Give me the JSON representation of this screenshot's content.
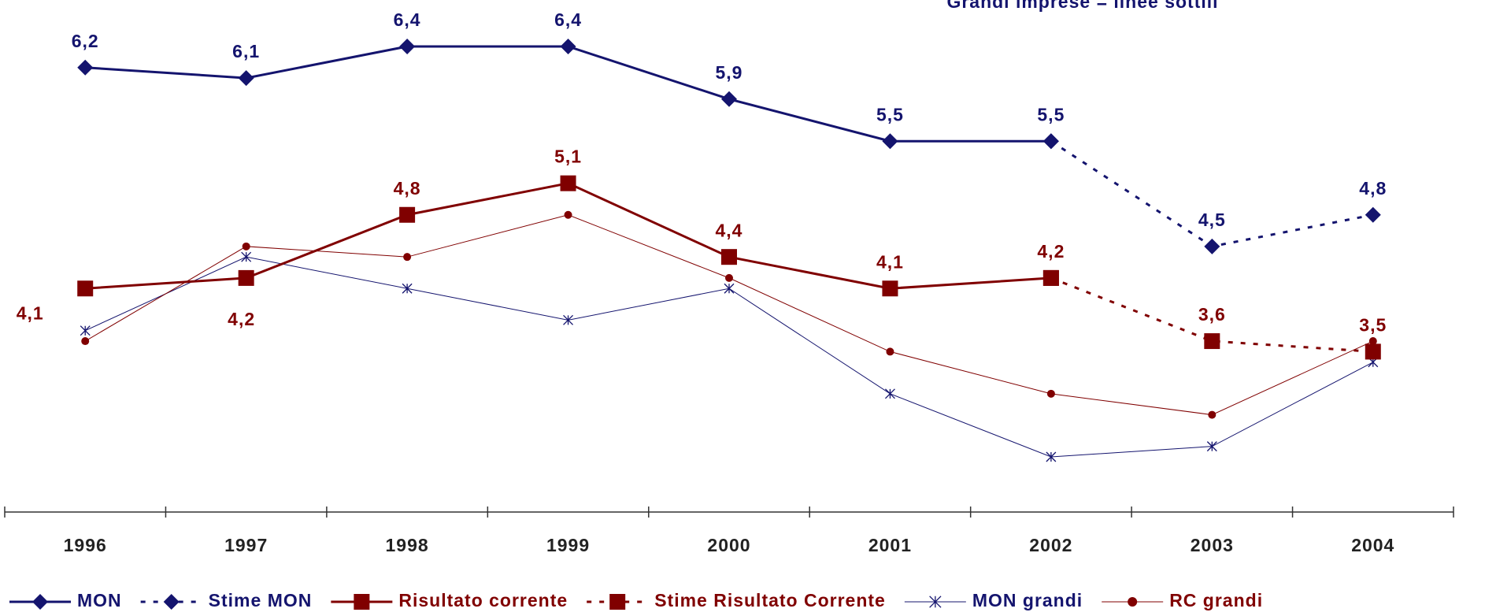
{
  "chart_data": {
    "type": "line",
    "annotation": "Grandi imprese = linee sottili",
    "categories": [
      "1996",
      "1997",
      "1998",
      "1999",
      "2000",
      "2001",
      "2002",
      "2003",
      "2004"
    ],
    "legend": "bottom",
    "series": [
      {
        "name": "MON",
        "color": "#14146e",
        "marker": "diamond",
        "dash": "solid",
        "width": 3,
        "values": [
          6.2,
          6.1,
          6.4,
          6.4,
          5.9,
          5.5,
          5.5,
          null,
          null
        ],
        "value_labels": [
          "6,2",
          "6,1",
          "6,4",
          "6,4",
          "5,9",
          "5,5",
          "5,5",
          null,
          null
        ]
      },
      {
        "name": "Stime MON",
        "color": "#14146e",
        "marker": "diamond",
        "dash": "dotted",
        "width": 3,
        "values": [
          null,
          null,
          null,
          null,
          null,
          null,
          5.5,
          4.5,
          4.8
        ],
        "value_labels": [
          null,
          null,
          null,
          null,
          null,
          null,
          null,
          "4,5",
          "4,8"
        ]
      },
      {
        "name": "Risultato corrente",
        "color": "#800000",
        "marker": "square",
        "dash": "solid",
        "width": 3,
        "values": [
          4.1,
          4.2,
          4.8,
          5.1,
          4.4,
          4.1,
          4.2,
          null,
          null
        ],
        "value_labels": [
          "4,1",
          "4,2",
          "4,8",
          "5,1",
          "4,4",
          "4,1",
          "4,2",
          null,
          null
        ]
      },
      {
        "name": "Stime Risultato Corrente",
        "color": "#800000",
        "marker": "square",
        "dash": "dotted",
        "width": 3,
        "values": [
          null,
          null,
          null,
          null,
          null,
          null,
          4.2,
          3.6,
          3.5
        ],
        "value_labels": [
          null,
          null,
          null,
          null,
          null,
          null,
          null,
          "3,6",
          "3,5"
        ]
      },
      {
        "name": "MON grandi",
        "color": "#14146e",
        "marker": "asterisk",
        "dash": "solid",
        "width": 1,
        "values": [
          3.7,
          4.4,
          4.1,
          3.8,
          4.1,
          3.1,
          2.5,
          2.6,
          3.4
        ]
      },
      {
        "name": "RC grandi",
        "color": "#800000",
        "marker": "circle",
        "dash": "solid",
        "width": 1,
        "values": [
          3.6,
          4.5,
          4.4,
          4.8,
          4.2,
          3.5,
          3.1,
          2.9,
          3.6
        ]
      }
    ]
  }
}
